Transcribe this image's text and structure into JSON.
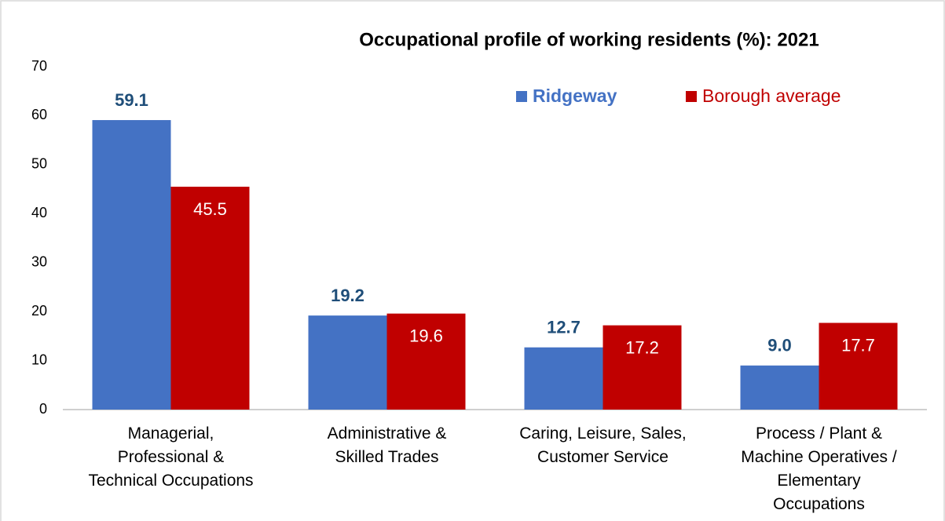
{
  "chart_data": {
    "type": "bar",
    "title": "Occupational profile of working residents (%):  2021",
    "categories": [
      "Managerial,\nProfessional &\nTechnical Occupations",
      "Administrative &\nSkilled Trades",
      "Caring, Leisure, Sales,\nCustomer Service",
      "Process / Plant &\nMachine Operatives /\nElementary\nOccupations"
    ],
    "series": [
      {
        "name": "Ridgeway",
        "color": "#4472c4",
        "values": [
          59.1,
          19.2,
          12.7,
          9.0
        ],
        "value_labels": [
          "59.1",
          "19.2",
          "12.7",
          "9.0"
        ]
      },
      {
        "name": "Borough average",
        "color": "#c00000",
        "values": [
          45.5,
          19.6,
          17.2,
          17.7
        ]
      }
    ],
    "ylim": [
      0,
      70
    ],
    "yticks": [
      0,
      10,
      20,
      30,
      40,
      50,
      60,
      70
    ],
    "grid": false,
    "legend": "top-right"
  }
}
